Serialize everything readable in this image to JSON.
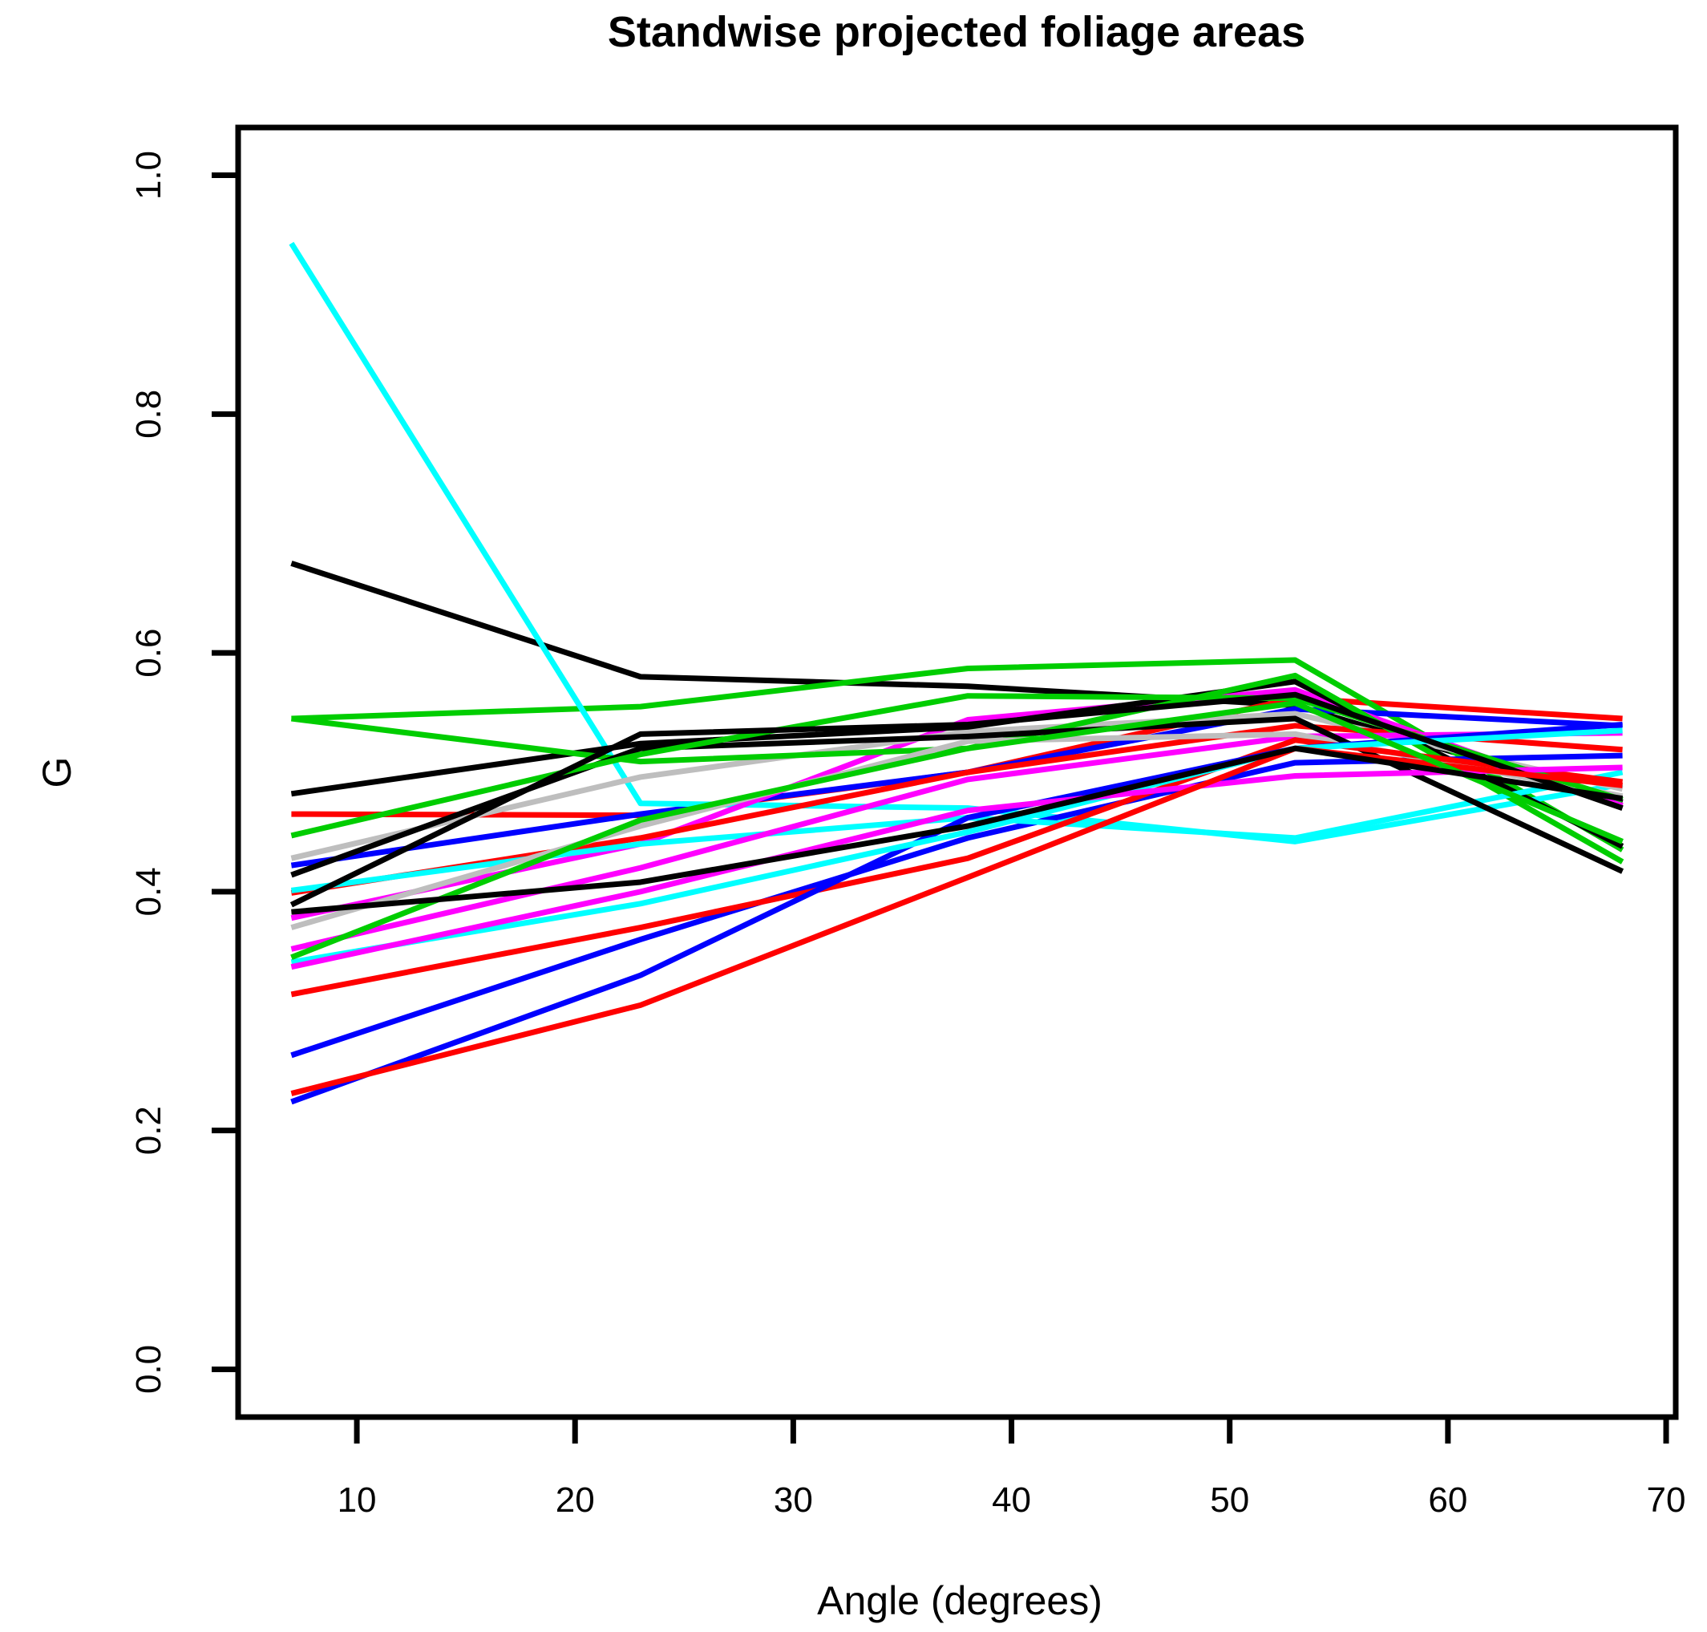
{
  "window": {
    "background": "#ffffff"
  },
  "chart_data": {
    "type": "line",
    "title": "Standwise projected foliage areas",
    "xlabel": "Angle (degrees)",
    "ylabel": "G",
    "x": [
      7,
      23,
      38,
      53,
      68
    ],
    "x_ticks": [
      10,
      20,
      30,
      40,
      50,
      60,
      70
    ],
    "y_ticks": [
      0.0,
      0.2,
      0.4,
      0.6,
      0.8,
      1.0
    ],
    "xlim": [
      4.56,
      70.44
    ],
    "ylim": [
      -0.04,
      1.04
    ],
    "grid": false,
    "legend": "none",
    "axis_color": "#000000",
    "palette": {
      "black": "#000000",
      "red": "#FF0000",
      "green": "#00CD00",
      "blue": "#0000FF",
      "cyan": "#00FFFF",
      "magenta": "#FF00FF",
      "gray": "#BEBEBE"
    },
    "series": [
      {
        "color": "#000000",
        "values": [
          0.675,
          0.58,
          0.572,
          0.556,
          0.475
        ]
      },
      {
        "color": "#FF0000",
        "values": [
          0.465,
          0.464,
          0.5,
          0.562,
          0.545
        ]
      },
      {
        "color": "#00CD00",
        "values": [
          0.545,
          0.555,
          0.587,
          0.594,
          0.435
        ]
      },
      {
        "color": "#0000FF",
        "values": [
          0.422,
          0.465,
          0.5,
          0.553,
          0.539
        ]
      },
      {
        "color": "#00FFFF",
        "values": [
          0.943,
          0.474,
          0.47,
          0.442,
          0.49
        ]
      },
      {
        "color": "#FF00FF",
        "values": [
          0.378,
          0.44,
          0.544,
          0.569,
          0.472
        ]
      },
      {
        "color": "#BEBEBE",
        "values": [
          0.428,
          0.496,
          0.534,
          0.549,
          0.486
        ]
      },
      {
        "color": "#000000",
        "values": [
          0.482,
          0.524,
          0.538,
          0.576,
          0.438
        ]
      },
      {
        "color": "#FF0000",
        "values": [
          0.399,
          0.445,
          0.5,
          0.539,
          0.519
        ]
      },
      {
        "color": "#00CD00",
        "values": [
          0.545,
          0.509,
          0.52,
          0.581,
          0.425
        ]
      },
      {
        "color": "#0000FF",
        "values": [
          0.263,
          0.36,
          0.445,
          0.508,
          0.514
        ]
      },
      {
        "color": "#00FFFF",
        "values": [
          0.401,
          0.44,
          0.462,
          0.445,
          0.5
        ]
      },
      {
        "color": "#FF00FF",
        "values": [
          0.352,
          0.42,
          0.494,
          0.53,
          0.533
        ]
      },
      {
        "color": "#BEBEBE",
        "values": [
          0.37,
          0.455,
          0.526,
          0.532,
          0.48
        ]
      },
      {
        "color": "#000000",
        "values": [
          0.414,
          0.52,
          0.53,
          0.545,
          0.417
        ]
      },
      {
        "color": "#FF0000",
        "values": [
          0.314,
          0.37,
          0.428,
          0.527,
          0.492
        ]
      },
      {
        "color": "#00CD00",
        "values": [
          0.447,
          0.515,
          0.564,
          0.562,
          0.477
        ]
      },
      {
        "color": "#0000FF",
        "values": [
          0.224,
          0.33,
          0.462,
          0.52,
          0.54
        ]
      },
      {
        "color": "#00FFFF",
        "values": [
          0.341,
          0.39,
          0.45,
          0.52,
          0.535
        ]
      },
      {
        "color": "#FF00FF",
        "values": [
          0.337,
          0.4,
          0.468,
          0.497,
          0.504
        ]
      },
      {
        "color": "#000000",
        "values": [
          0.389,
          0.532,
          0.54,
          0.565,
          0.47
        ]
      },
      {
        "color": "#FF0000",
        "values": [
          0.231,
          0.305,
          0.412,
          0.52,
          0.489
        ]
      },
      {
        "color": "#00CD00",
        "values": [
          0.345,
          0.46,
          0.52,
          0.558,
          0.442
        ]
      },
      {
        "color": "#000000",
        "values": [
          0.383,
          0.408,
          0.455,
          0.52,
          0.478
        ]
      }
    ]
  }
}
